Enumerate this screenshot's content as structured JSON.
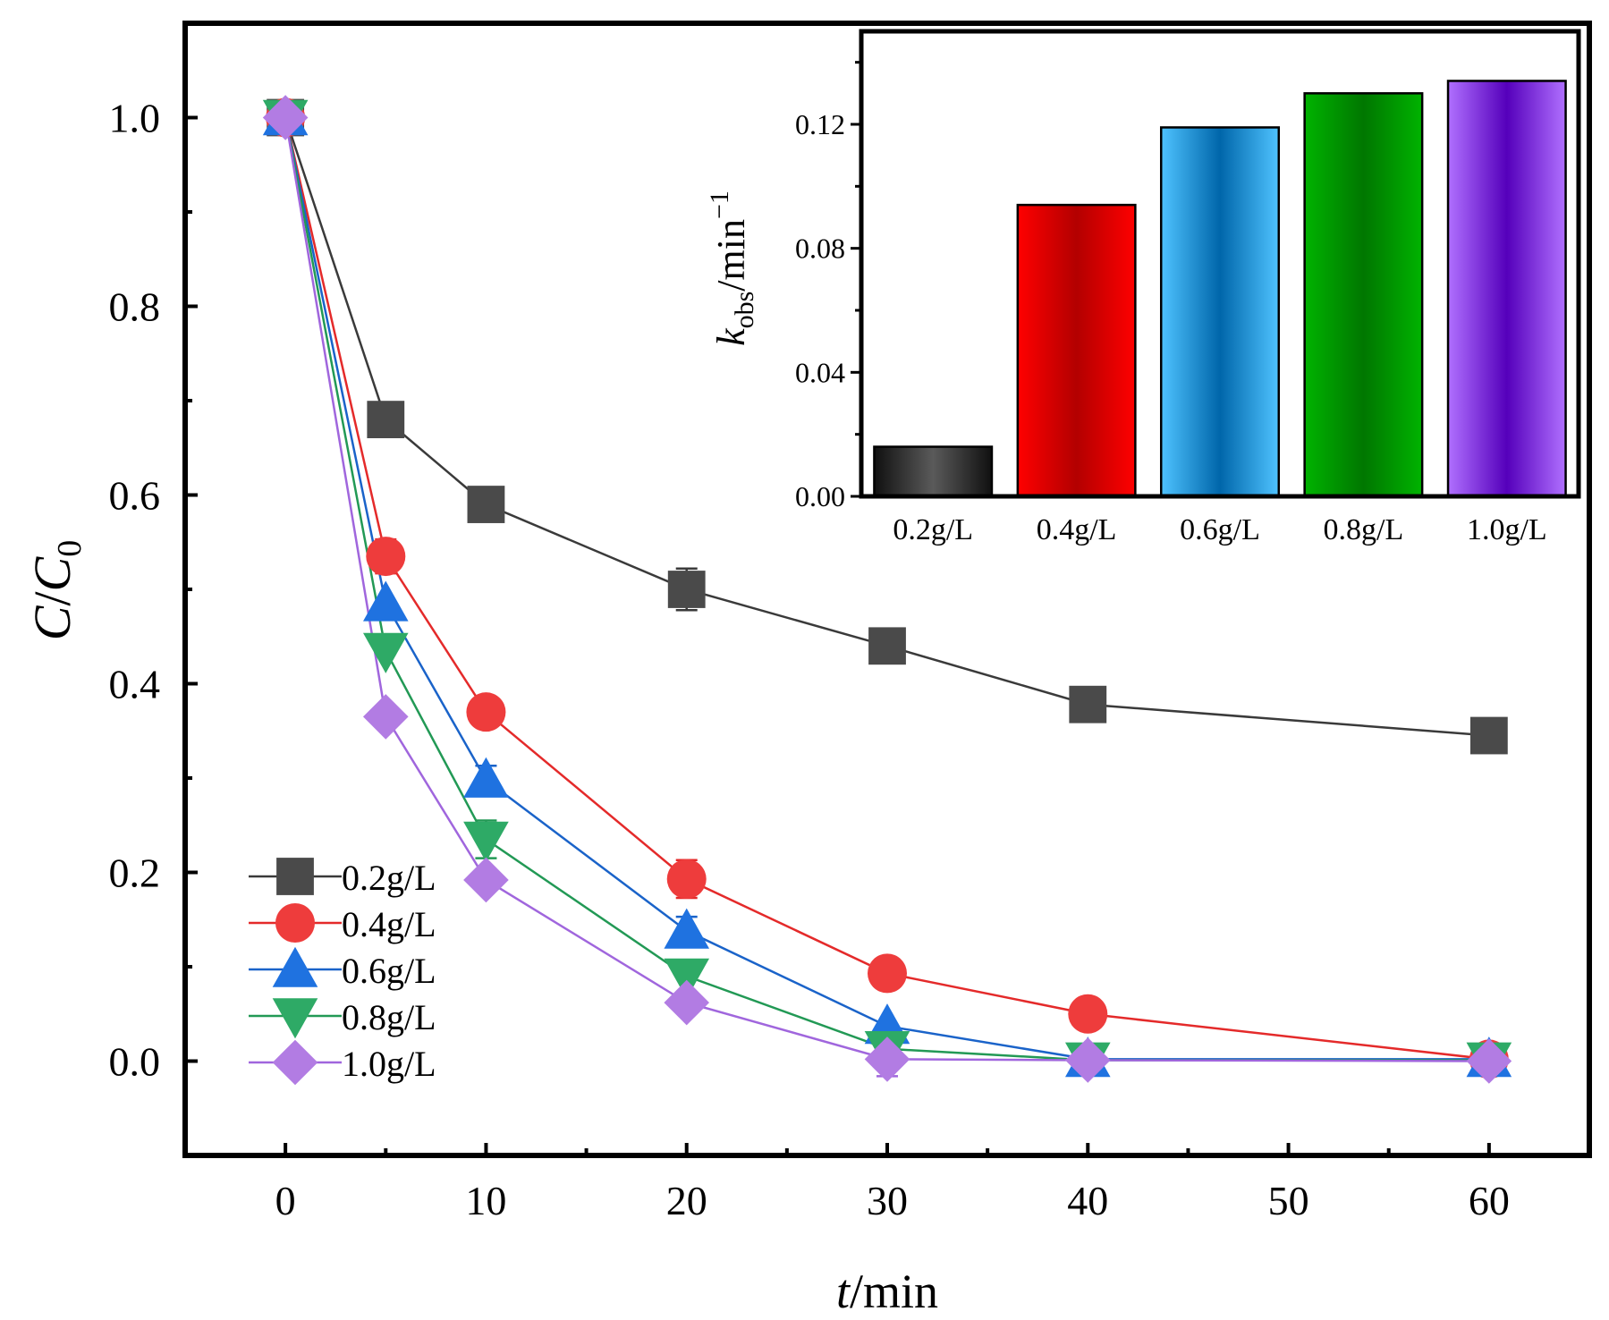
{
  "chart_data": [
    {
      "type": "line",
      "title": "",
      "xlabel_italic": "t",
      "xlabel_rest": "/min",
      "ylabel_italic": "C",
      "ylabel_mid": "/",
      "ylabel_italic2": "C",
      "ylabel_sub": "0",
      "xlim": [
        -5,
        65
      ],
      "ylim": [
        -0.1,
        1.1
      ],
      "x_ticks": [
        0,
        10,
        20,
        30,
        40,
        50,
        60
      ],
      "x_tick_labels": [
        "0",
        "10",
        "20",
        "30",
        "40",
        "50",
        "60"
      ],
      "y_ticks": [
        0.0,
        0.2,
        0.4,
        0.6,
        0.8,
        1.0
      ],
      "y_tick_labels": [
        "0.0",
        "0.2",
        "0.4",
        "0.6",
        "0.8",
        "1.0"
      ],
      "x": [
        0,
        5,
        10,
        20,
        30,
        40,
        60
      ],
      "legend_position": "bottom-left",
      "series": [
        {
          "name": "0.2g/L",
          "marker": "square",
          "color": "#4a4a4a",
          "line_color": "#3a3a3a",
          "values": [
            1.0,
            0.68,
            0.59,
            0.5,
            0.44,
            0.378,
            0.345
          ],
          "errors": [
            0.0,
            0.0,
            0.0,
            0.022,
            0.0,
            0.017,
            0.0
          ]
        },
        {
          "name": "0.4g/L",
          "marker": "circle",
          "color": "#ee3c3c",
          "line_color": "#e42a2a",
          "values": [
            1.0,
            0.535,
            0.37,
            0.193,
            0.093,
            0.05,
            0.002
          ],
          "errors": [
            0.0,
            0.018,
            0.0,
            0.02,
            0.0,
            0.0,
            0.0
          ]
        },
        {
          "name": "0.6g/L",
          "marker": "triangle-up",
          "color": "#1f72e0",
          "line_color": "#1a63c9",
          "values": [
            1.0,
            0.485,
            0.298,
            0.138,
            0.037,
            0.002,
            0.002
          ],
          "errors": [
            0.0,
            0.0,
            0.015,
            0.015,
            0.0,
            0.0,
            0.0
          ]
        },
        {
          "name": "0.8g/L",
          "marker": "triangle-down",
          "color": "#2eaa66",
          "line_color": "#229955",
          "values": [
            1.0,
            0.435,
            0.235,
            0.09,
            0.013,
            0.001,
            0.001
          ],
          "errors": [
            0.0,
            0.0,
            0.02,
            0.0,
            0.01,
            0.0,
            0.0
          ]
        },
        {
          "name": "1.0g/L",
          "marker": "diamond",
          "color": "#b27ce3",
          "line_color": "#a066dd",
          "values": [
            1.0,
            0.365,
            0.192,
            0.062,
            0.002,
            0.001,
            0.0
          ],
          "errors": [
            0.0,
            0.0,
            0.0,
            0.0,
            0.018,
            0.0,
            0.0
          ]
        }
      ]
    },
    {
      "type": "bar",
      "title": "",
      "xlabel": "",
      "ylabel_italic": "k",
      "ylabel_sub": "obs",
      "ylabel_rest": "/min",
      "ylabel_sup": "−1",
      "ylim": [
        0,
        0.15
      ],
      "y_ticks": [
        0.0,
        0.04,
        0.08,
        0.12
      ],
      "y_tick_labels": [
        "0.00",
        "0.04",
        "0.08",
        "0.12"
      ],
      "categories": [
        "0.2g/L",
        "0.4g/L",
        "0.6g/L",
        "0.8g/L",
        "1.0g/L"
      ],
      "values": [
        0.016,
        0.094,
        0.119,
        0.13,
        0.134
      ],
      "colors": [
        [
          "#101010",
          "#5a5a5a",
          "#101010"
        ],
        [
          "#ff0000",
          "#b30000",
          "#ff0000"
        ],
        [
          "#4fc3ff",
          "#0066aa",
          "#4fc3ff"
        ],
        [
          "#00b300",
          "#007700",
          "#00b300"
        ],
        [
          "#b070ff",
          "#5500bb",
          "#b070ff"
        ]
      ]
    }
  ]
}
